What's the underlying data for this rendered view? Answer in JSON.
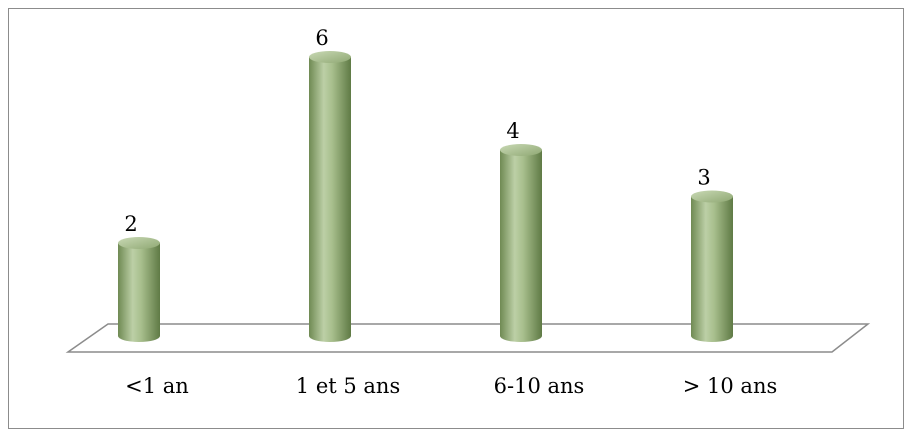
{
  "chart_data": {
    "type": "bar",
    "title": "",
    "xlabel": "",
    "ylabel": "",
    "categories": [
      "<1 an",
      "1 et 5 ans",
      "6-10 ans",
      "> 10 ans"
    ],
    "values": [
      2,
      6,
      4,
      3
    ],
    "data_labels": [
      "2",
      "6",
      "4",
      "3"
    ],
    "ylim": [
      0,
      6
    ],
    "grid": false,
    "legend": "none",
    "style": "3d-cylinder",
    "colors": {
      "bar": "#9db57f",
      "bar_dark": "#6f8a53",
      "bar_light": "#d2dfc2",
      "floor_stroke": "#8c8c8c"
    }
  }
}
